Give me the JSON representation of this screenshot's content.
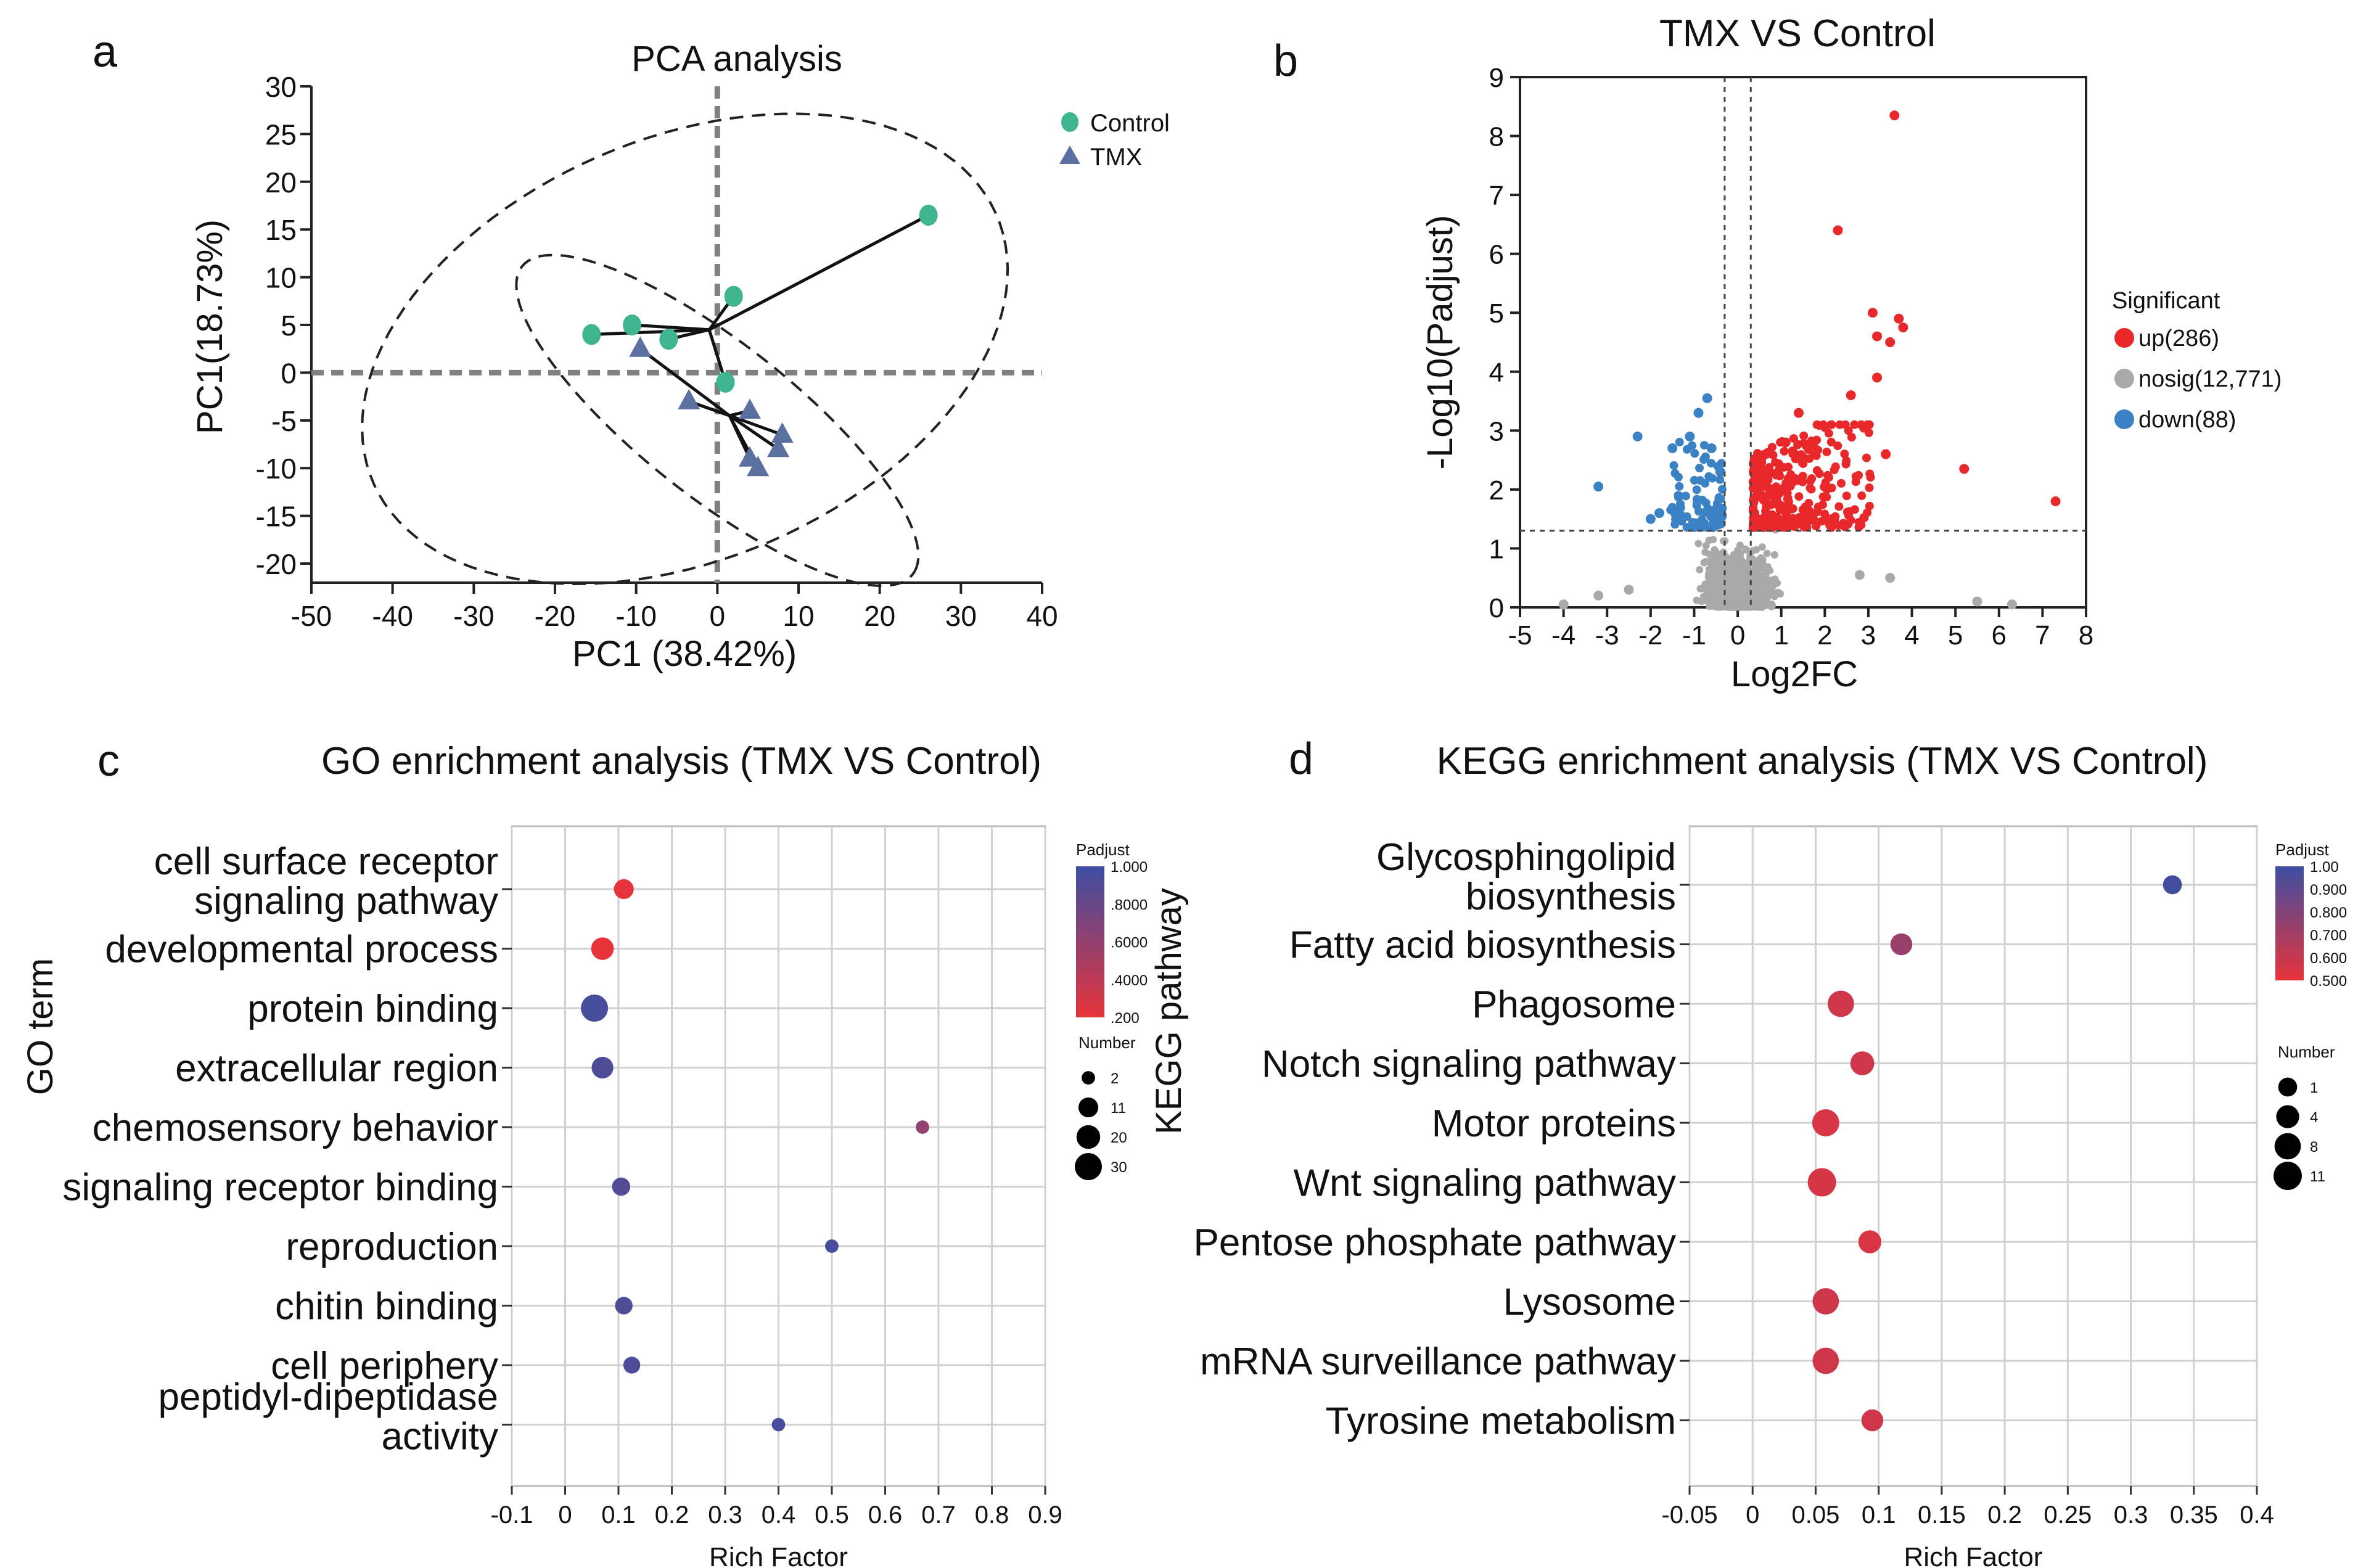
{
  "figure": {
    "panel_labels": {
      "a": "a",
      "b": "b",
      "c": "c",
      "d": "d"
    },
    "colors": {
      "control": "#3fb58f",
      "tmx": "#5b6fa0",
      "up": "#e8282b",
      "nosig": "#a9a9a9",
      "down": "#3a82c4",
      "grid": "#d0d0d0",
      "high": "#e8333a",
      "low": "#3d4ea3"
    }
  },
  "chart_data": [
    {
      "id": "pca",
      "type": "scatter",
      "title": "PCA analysis",
      "xlabel": "PC1 (38.42%)",
      "ylabel": "PC1(18.73%)",
      "xlim": [
        -50,
        40
      ],
      "ylim": [
        -22,
        30
      ],
      "xticks": [
        -50,
        -40,
        -30,
        -20,
        -10,
        0,
        10,
        20,
        30,
        40
      ],
      "yticks": [
        30,
        25,
        20,
        15,
        10,
        5,
        0,
        -5,
        -10,
        -15,
        -20
      ],
      "legend": [
        {
          "label": "Control",
          "shape": "circle"
        },
        {
          "label": "TMX",
          "shape": "triangle"
        }
      ],
      "series": [
        {
          "name": "Control",
          "centroid": [
            -1,
            4.5
          ],
          "points": [
            [
              26,
              16.5
            ],
            [
              2,
              8
            ],
            [
              -15.5,
              4
            ],
            [
              -10.5,
              5
            ],
            [
              -6,
              3.5
            ],
            [
              1,
              -1
            ]
          ]
        },
        {
          "name": "TMX",
          "centroid": [
            1.5,
            -4.5
          ],
          "points": [
            [
              -9.5,
              2.5
            ],
            [
              -3.5,
              -3
            ],
            [
              4,
              -4
            ],
            [
              8,
              -6.5
            ],
            [
              7.5,
              -8
            ],
            [
              4,
              -9
            ],
            [
              5,
              -10
            ]
          ]
        }
      ],
      "ellipses": [
        {
          "name": "Control",
          "center": [
            -4,
            2.5
          ],
          "rx": 41,
          "ry": 22.5,
          "angle_deg": 17
        },
        {
          "name": "TMX",
          "center": [
            0,
            -5
          ],
          "rx": 29,
          "ry": 8.5,
          "angle_deg": -33
        }
      ]
    },
    {
      "id": "volcano",
      "type": "scatter",
      "title": "TMX VS Control",
      "xlabel": "Log2FC",
      "ylabel": "-Log10(Padjust)",
      "xlim": [
        -5,
        8
      ],
      "ylim": [
        0,
        9
      ],
      "xticks": [
        -5,
        -4,
        -3,
        -2,
        -1,
        0,
        1,
        2,
        3,
        4,
        5,
        6,
        7,
        8
      ],
      "yticks": [
        0,
        1,
        2,
        3,
        4,
        5,
        6,
        7,
        8,
        9
      ],
      "thresholds": {
        "x": [
          -0.3,
          0.3
        ],
        "y": 1.3
      },
      "legend_title": "Significant",
      "legend": [
        {
          "key": "up",
          "label": "up(286)"
        },
        {
          "key": "nosig",
          "label": "nosig(12,771)"
        },
        {
          "key": "down",
          "label": "down(88)"
        }
      ],
      "highlight_points": {
        "up": [
          [
            3.6,
            8.35
          ],
          [
            2.3,
            6.4
          ],
          [
            3.1,
            5.0
          ],
          [
            3.7,
            4.9
          ],
          [
            3.8,
            4.75
          ],
          [
            3.2,
            4.6
          ],
          [
            3.5,
            4.5
          ],
          [
            5.2,
            2.35
          ],
          [
            7.3,
            1.8
          ],
          [
            3.4,
            2.6
          ],
          [
            1.4,
            3.3
          ],
          [
            2.6,
            3.6
          ],
          [
            3.2,
            3.9
          ],
          [
            2.9,
            3.05
          ],
          [
            1.1,
            2.8
          ]
        ],
        "down": [
          [
            -0.7,
            3.55
          ],
          [
            -0.9,
            3.3
          ],
          [
            -2.3,
            2.9
          ],
          [
            -3.2,
            2.05
          ],
          [
            -2.0,
            1.5
          ],
          [
            -1.5,
            2.7
          ],
          [
            -1.1,
            2.9
          ],
          [
            -0.6,
            2.7
          ],
          [
            -1.8,
            1.6
          ],
          [
            -0.4,
            2.3
          ]
        ],
        "nosig": [
          [
            -4.0,
            0.05
          ],
          [
            -2.5,
            0.3
          ],
          [
            5.5,
            0.1
          ],
          [
            6.3,
            0.05
          ],
          [
            3.5,
            0.5
          ],
          [
            2.8,
            0.55
          ],
          [
            -3.2,
            0.2
          ]
        ]
      },
      "cloud_seed": 7
    },
    {
      "id": "go",
      "type": "scatter",
      "title": "GO enrichment analysis (TMX VS Control)",
      "xlabel": "Rich Factor",
      "ylabel": "GO term",
      "xlim": [
        -0.1,
        0.9
      ],
      "xticks": [
        -0.1,
        0,
        0.1,
        0.2,
        0.3,
        0.4,
        0.5,
        0.6,
        0.7,
        0.8,
        0.9
      ],
      "categories": [
        [
          "cell surface receptor",
          "signaling pathway"
        ],
        [
          "developmental process"
        ],
        [
          "protein binding"
        ],
        [
          "extracellular region"
        ],
        [
          "chemosensory behavior"
        ],
        [
          "signaling receptor binding"
        ],
        [
          "reproduction"
        ],
        [
          "chitin binding"
        ],
        [
          "cell periphery"
        ],
        [
          "peptidyl-dipeptidase",
          "activity"
        ]
      ],
      "points": [
        {
          "x": 0.11,
          "number": 11,
          "padjust": 0.22
        },
        {
          "x": 0.07,
          "number": 17,
          "padjust": 0.2
        },
        {
          "x": 0.055,
          "number": 30,
          "padjust": 0.95
        },
        {
          "x": 0.07,
          "number": 15,
          "padjust": 0.92
        },
        {
          "x": 0.67,
          "number": 2,
          "padjust": 0.6
        },
        {
          "x": 0.105,
          "number": 8,
          "padjust": 0.9
        },
        {
          "x": 0.5,
          "number": 2,
          "padjust": 0.95
        },
        {
          "x": 0.11,
          "number": 7,
          "padjust": 0.9
        },
        {
          "x": 0.125,
          "number": 6,
          "padjust": 0.92
        },
        {
          "x": 0.4,
          "number": 2,
          "padjust": 0.95
        }
      ],
      "colorbar": {
        "title": "Padjust",
        "labels": [
          "1.000",
          ".8000",
          ".6000",
          ".4000",
          ".200"
        ],
        "range": [
          0.2,
          1.0
        ]
      },
      "size_legend": {
        "title": "Number",
        "values": [
          2,
          11,
          20,
          30
        ],
        "labels": [
          "2",
          "11",
          "20",
          "30"
        ]
      }
    },
    {
      "id": "kegg",
      "type": "scatter",
      "title": "KEGG enrichment analysis (TMX VS Control)",
      "xlabel": "Rich Factor",
      "ylabel": "KEGG pathway",
      "xlim": [
        -0.05,
        0.4
      ],
      "xticks": [
        -0.05,
        0,
        0.05,
        0.1,
        0.15,
        0.2,
        0.25,
        0.3,
        0.35,
        0.4
      ],
      "xtick_labels": [
        "-0.05",
        "0",
        "0.05",
        "0.1",
        "0.15",
        "0.2",
        "0.25",
        "0.3",
        "0.35",
        "0.4"
      ],
      "categories": [
        [
          "Glycosphingolipid",
          "biosynthesis"
        ],
        [
          "Fatty acid biosynthesis"
        ],
        [
          "Phagosome"
        ],
        [
          "Notch signaling pathway"
        ],
        [
          "Motor proteins"
        ],
        [
          "Wnt signaling pathway"
        ],
        [
          "Pentose phosphate pathway"
        ],
        [
          "Lysosome"
        ],
        [
          "mRNA surveillance pathway"
        ],
        [
          "Tyrosine metabolism"
        ]
      ],
      "points": [
        {
          "x": 0.333,
          "number": 1,
          "padjust": 0.98
        },
        {
          "x": 0.118,
          "number": 3,
          "padjust": 0.72
        },
        {
          "x": 0.07,
          "number": 8,
          "padjust": 0.55
        },
        {
          "x": 0.087,
          "number": 5,
          "padjust": 0.55
        },
        {
          "x": 0.058,
          "number": 9,
          "padjust": 0.52
        },
        {
          "x": 0.055,
          "number": 11,
          "padjust": 0.53
        },
        {
          "x": 0.093,
          "number": 4,
          "padjust": 0.52
        },
        {
          "x": 0.058,
          "number": 8,
          "padjust": 0.55
        },
        {
          "x": 0.058,
          "number": 8,
          "padjust": 0.55
        },
        {
          "x": 0.095,
          "number": 3,
          "padjust": 0.55
        }
      ],
      "colorbar": {
        "title": "Padjust",
        "labels": [
          "1.00",
          "0.900",
          "0.800",
          "0.700",
          "0.600",
          "0.500"
        ],
        "range": [
          0.47,
          1.0
        ]
      },
      "size_legend": {
        "title": "Number",
        "values": [
          1,
          4,
          8,
          11
        ],
        "labels": [
          "1",
          "4",
          "8",
          "11"
        ]
      }
    }
  ]
}
